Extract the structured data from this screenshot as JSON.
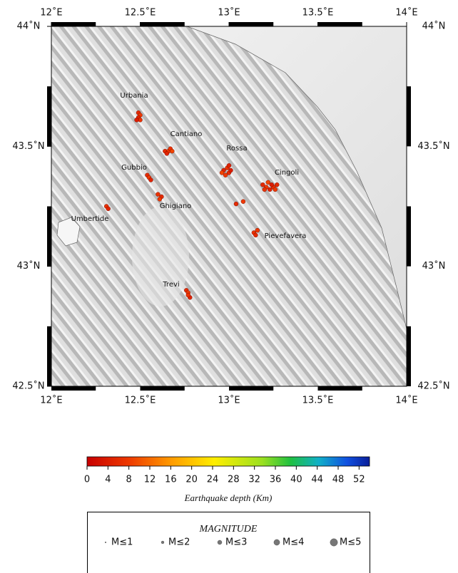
{
  "map": {
    "xlim": [
      12,
      14
    ],
    "ylim": [
      42.5,
      44
    ],
    "xticks": [
      {
        "value": 12,
        "label": "12˚E"
      },
      {
        "value": 12.5,
        "label": "12.5˚E"
      },
      {
        "value": 13,
        "label": "13˚E"
      },
      {
        "value": 13.5,
        "label": "13.5˚E"
      },
      {
        "value": 14,
        "label": "14˚E"
      }
    ],
    "yticks": [
      {
        "value": 44,
        "label": "44˚N"
      },
      {
        "value": 43.5,
        "label": "43.5˚N"
      },
      {
        "value": 43,
        "label": "43˚N"
      },
      {
        "value": 42.5,
        "label": "42.5˚N"
      }
    ],
    "places": [
      "Urbania",
      "Cantiano",
      "Rossa",
      "Gubbio",
      "Cingoli",
      "Ghigiano",
      "Umbertide",
      "Pievefavera",
      "Trevi"
    ],
    "events": {
      "lon": [
        12.49,
        12.5,
        12.49,
        12.5,
        12.48,
        12.64,
        12.66,
        12.65,
        12.67,
        12.68,
        12.97,
        12.99,
        13.0,
        12.98,
        13.01,
        12.96,
        13.0,
        13.19,
        13.21,
        13.23,
        13.25,
        13.27,
        13.22,
        13.24,
        13.26,
        13.2,
        12.54,
        12.55,
        12.56,
        12.6,
        12.62,
        12.61,
        12.31,
        12.32,
        13.04,
        13.08,
        13.14,
        13.15,
        13.16,
        12.76,
        12.77,
        12.78,
        12.77
      ],
      "lat": [
        43.64,
        43.63,
        43.62,
        43.61,
        43.61,
        43.48,
        43.48,
        43.47,
        43.49,
        43.48,
        43.4,
        43.41,
        43.39,
        43.38,
        43.4,
        43.39,
        43.42,
        43.34,
        43.33,
        43.32,
        43.33,
        43.34,
        43.35,
        43.34,
        43.32,
        43.32,
        43.38,
        43.37,
        43.36,
        43.3,
        43.29,
        43.28,
        43.25,
        43.24,
        43.26,
        43.27,
        43.14,
        43.13,
        43.15,
        42.9,
        42.89,
        42.87,
        42.88
      ],
      "depth": [
        6,
        8,
        5,
        7,
        4,
        6,
        8,
        5,
        7,
        9,
        5,
        7,
        6,
        8,
        4,
        9,
        5,
        6,
        8,
        5,
        7,
        6,
        9,
        4,
        8,
        7,
        6,
        8,
        5,
        7,
        6,
        8,
        7,
        5,
        6,
        8,
        7,
        6,
        8,
        6,
        8,
        5,
        7
      ]
    },
    "colorbar": {
      "title": "Earthquake depth (Km)",
      "lim": [
        0,
        54
      ],
      "ticks": [
        0,
        4,
        8,
        12,
        16,
        20,
        24,
        28,
        32,
        36,
        40,
        44,
        48,
        52
      ]
    },
    "legend": {
      "title": "MAGNITUDE",
      "items": [
        "M≤1",
        "M≤2",
        "M≤3",
        "M≤4",
        "M≤5"
      ]
    }
  }
}
